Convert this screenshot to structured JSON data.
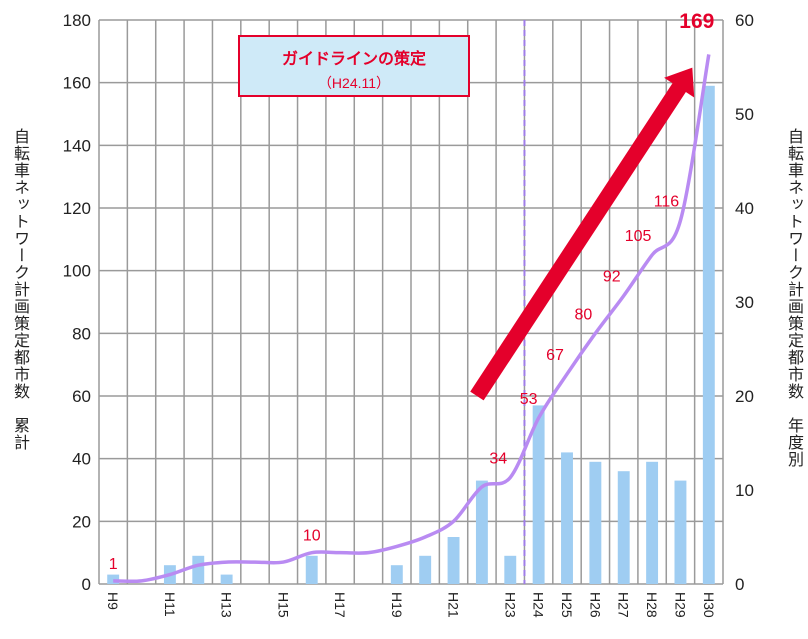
{
  "chart_data": {
    "type": "bar+line",
    "x": [
      "H9",
      "H10",
      "H11",
      "H12",
      "H13",
      "H14",
      "H15",
      "H16",
      "H17",
      "H18",
      "H19",
      "H20",
      "H21",
      "H22",
      "H23",
      "H24",
      "H25",
      "H26",
      "H27",
      "H28",
      "H29",
      "H30"
    ],
    "x_tick_labels": [
      "H9",
      "",
      "H11",
      "",
      "H13",
      "",
      "H15",
      "",
      "H17",
      "",
      "H19",
      "",
      "H21",
      "",
      "H23",
      "H24",
      "H25",
      "H26",
      "H27",
      "H28",
      "H29",
      "H30"
    ],
    "series": [
      {
        "name": "年度別",
        "kind": "bar",
        "axis": "right",
        "color": "#9fcdf2",
        "values": [
          1,
          0,
          2,
          3,
          1,
          0,
          0,
          3,
          0,
          0,
          2,
          3,
          5,
          11,
          3,
          19,
          14,
          13,
          12,
          13,
          11,
          53
        ]
      },
      {
        "name": "累計",
        "kind": "line",
        "axis": "left",
        "color": "#b98bf2",
        "values": [
          1,
          1,
          3,
          6,
          7,
          7,
          7,
          10,
          10,
          10,
          12,
          15,
          20,
          31,
          34,
          53,
          67,
          80,
          92,
          105,
          116,
          169
        ]
      }
    ],
    "line_labels": [
      {
        "x": "H9",
        "text": "1"
      },
      {
        "x": "H16",
        "text": "10"
      },
      {
        "x": "H23",
        "text": "34"
      },
      {
        "x": "H24",
        "text": "53"
      },
      {
        "x": "H25",
        "text": "67"
      },
      {
        "x": "H26",
        "text": "80"
      },
      {
        "x": "H27",
        "text": "92"
      },
      {
        "x": "H28",
        "text": "105"
      },
      {
        "x": "H29",
        "text": "116"
      },
      {
        "x": "H30",
        "text": "169"
      }
    ],
    "ylim_left": [
      0,
      180
    ],
    "yticks_left": [
      0,
      20,
      40,
      60,
      80,
      100,
      120,
      140,
      160,
      180
    ],
    "ylim_right": [
      0,
      60
    ],
    "yticks_right": [
      0,
      10,
      20,
      30,
      40,
      50,
      60
    ],
    "ylabel_left": "自転車ネットワーク計画策定都市数　累計",
    "ylabel_right": "自転車ネットワーク計画策定都市数　年度別",
    "vline_at": "H24",
    "grid": true,
    "annotation": {
      "line1": "ガイドラインの策定",
      "line2": "（H24.11）"
    }
  },
  "colors": {
    "accent": "#e4002b",
    "bar": "#9fcdf2",
    "line": "#b98bf2",
    "grid": "#9a9a9a",
    "vline": "#a07ee8"
  }
}
